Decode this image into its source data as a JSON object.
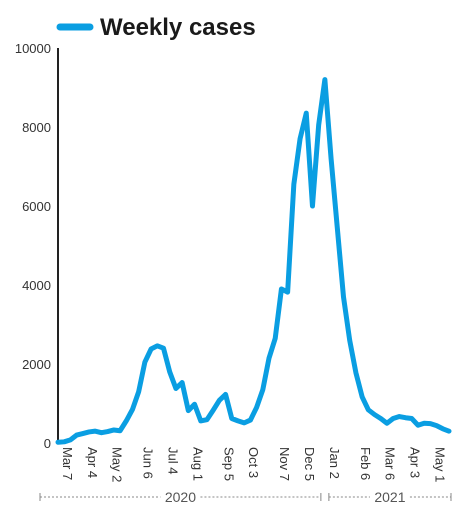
{
  "chart_data": {
    "type": "line",
    "title": "",
    "xlabel": "",
    "ylabel": "",
    "ylim": [
      0,
      10000
    ],
    "yticks": [
      0,
      2000,
      4000,
      6000,
      8000,
      10000
    ],
    "grid": false,
    "legend": "top-left",
    "series": [
      {
        "name": "Weekly cases",
        "color": "#0a9ee2",
        "values": [
          20,
          30,
          80,
          200,
          240,
          280,
          300,
          260,
          290,
          330,
          310,
          560,
          850,
          1300,
          2050,
          2380,
          2460,
          2400,
          1800,
          1380,
          1530,
          820,
          980,
          560,
          590,
          830,
          1080,
          1230,
          620,
          560,
          510,
          580,
          900,
          1350,
          2150,
          2650,
          3900,
          3820,
          6550,
          7700,
          8350,
          6000,
          8050,
          9200,
          7200,
          5450,
          3700,
          2600,
          1780,
          1170,
          840,
          720,
          620,
          500,
          620,
          670,
          640,
          620,
          450,
          500,
          490,
          440,
          360,
          300
        ]
      }
    ],
    "x_labels": [
      {
        "label": "Mar 7",
        "week": 0
      },
      {
        "label": "Apr 4",
        "week": 4
      },
      {
        "label": "May 2",
        "week": 8
      },
      {
        "label": "Jun 6",
        "week": 13
      },
      {
        "label": "Jul 4",
        "week": 17
      },
      {
        "label": "Aug 1",
        "week": 21
      },
      {
        "label": "Sep 5",
        "week": 26
      },
      {
        "label": "Oct 3",
        "week": 30
      },
      {
        "label": "Nov 7",
        "week": 35
      },
      {
        "label": "Dec 5",
        "week": 39
      },
      {
        "label": "Jan 2",
        "week": 43
      },
      {
        "label": "Feb 6",
        "week": 48
      },
      {
        "label": "Mar 6",
        "week": 52
      },
      {
        "label": "Apr 3",
        "week": 56
      },
      {
        "label": "May 1",
        "week": 60
      }
    ],
    "year_spans": [
      {
        "label": "2020",
        "start_week": 0,
        "end_week": 43
      },
      {
        "label": "2021",
        "start_week": 43,
        "end_week": 63
      }
    ]
  }
}
